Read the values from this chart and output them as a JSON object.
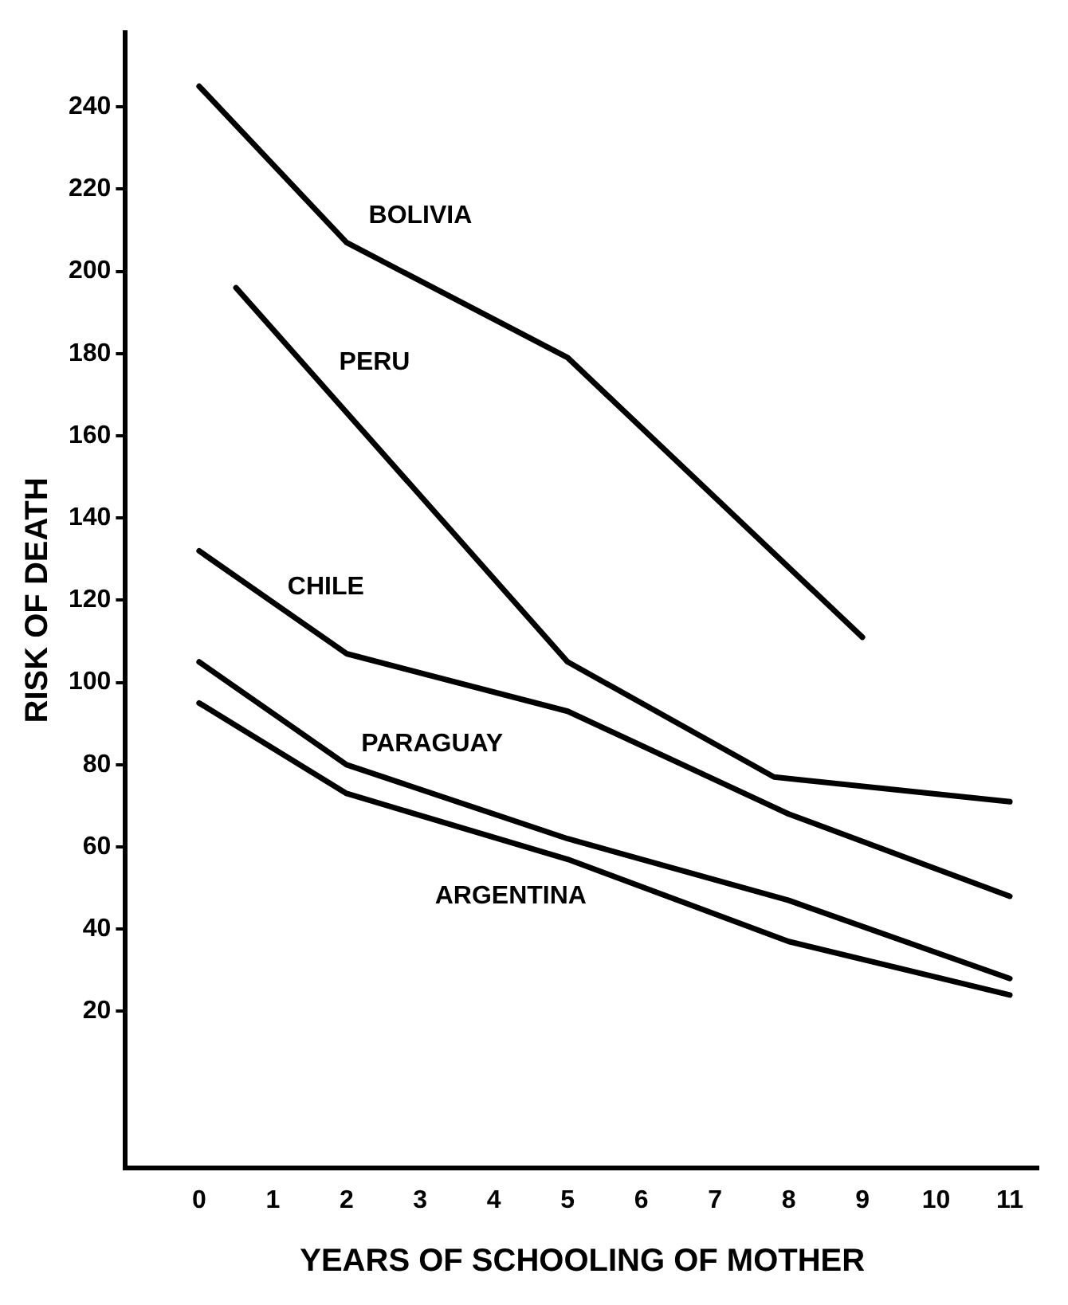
{
  "chart_data": {
    "type": "line",
    "xlabel": "YEARS OF SCHOOLING OF MOTHER",
    "ylabel": "RISK OF DEATH",
    "xlim": [
      -1,
      11.4
    ],
    "ylim": [
      -18,
      258
    ],
    "xticks": [
      0,
      1,
      2,
      3,
      4,
      5,
      6,
      7,
      8,
      9,
      10,
      11
    ],
    "yticks": [
      20,
      40,
      60,
      80,
      100,
      120,
      140,
      160,
      180,
      200,
      220,
      240
    ],
    "grid": false,
    "legend": false,
    "marker": "none",
    "line_style": "solid",
    "series": [
      {
        "name": "BOLIVIA",
        "color": "#000000",
        "x": [
          0,
          2,
          5,
          9
        ],
        "values": [
          245,
          207,
          179,
          111
        ]
      },
      {
        "name": "PERU",
        "color": "#000000",
        "x": [
          0.5,
          5,
          7.8,
          11
        ],
        "values": [
          196,
          105,
          77,
          71
        ]
      },
      {
        "name": "CHILE",
        "color": "#000000",
        "x": [
          0,
          2,
          5,
          8,
          11
        ],
        "values": [
          132,
          107,
          93,
          68,
          48
        ]
      },
      {
        "name": "PARAGUAY",
        "color": "#000000",
        "x": [
          0,
          2,
          5,
          8,
          11
        ],
        "values": [
          105,
          80,
          62,
          47,
          28
        ]
      },
      {
        "name": "ARGENTINA",
        "color": "#000000",
        "x": [
          0,
          2,
          5,
          8,
          11
        ],
        "values": [
          95,
          73,
          57,
          37,
          24
        ]
      }
    ]
  }
}
